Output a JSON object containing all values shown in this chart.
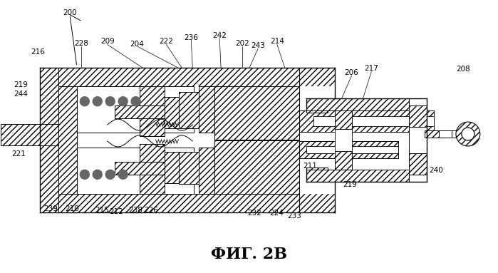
{
  "title": "ФИГ. 2B",
  "bg_color": "#ffffff",
  "line_color": "#000000",
  "fig_width": 6.99,
  "fig_height": 3.83,
  "labels_top": [
    [
      "200",
      97,
      17
    ],
    [
      "216",
      52,
      73
    ],
    [
      "228",
      113,
      61
    ],
    [
      "209",
      150,
      58
    ],
    [
      "204",
      192,
      62
    ],
    [
      "222",
      233,
      58
    ],
    [
      "236",
      268,
      52
    ],
    [
      "242",
      308,
      49
    ],
    [
      "202",
      340,
      61
    ],
    [
      "243",
      362,
      64
    ],
    [
      "214",
      389,
      58
    ],
    [
      "206",
      494,
      102
    ],
    [
      "217",
      522,
      96
    ],
    [
      "208",
      651,
      97
    ]
  ],
  "labels_left": [
    [
      "219",
      28,
      119
    ],
    [
      "244",
      28,
      132
    ],
    [
      "221",
      25,
      216
    ]
  ],
  "labels_bottom": [
    [
      "239",
      70,
      293
    ],
    [
      "210",
      100,
      293
    ],
    [
      "215",
      142,
      295
    ],
    [
      "212",
      163,
      297
    ],
    [
      "238",
      190,
      295
    ],
    [
      "226",
      212,
      295
    ],
    [
      "232",
      357,
      299
    ],
    [
      "224",
      388,
      299
    ],
    [
      "233",
      413,
      303
    ],
    [
      "211",
      436,
      233
    ],
    [
      "219",
      492,
      259
    ],
    [
      "240",
      613,
      239
    ]
  ]
}
